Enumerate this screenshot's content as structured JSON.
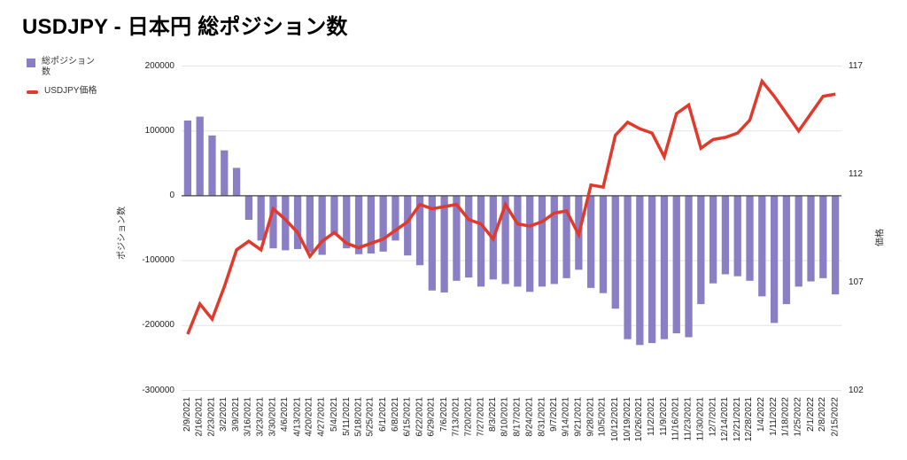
{
  "title": "USDJPY - 日本円 総ポジション数",
  "legend": {
    "items": [
      {
        "label": "総ポジション数",
        "type": "bar"
      },
      {
        "label": "USDJPY価格",
        "type": "line"
      }
    ]
  },
  "left_axis": {
    "title": "ポジション数",
    "ticks": [
      "200000",
      "100000",
      "0",
      "-100000",
      "-200000",
      "-300000"
    ]
  },
  "right_axis": {
    "title": "価格",
    "ticks": [
      "117",
      "112",
      "107",
      "102"
    ]
  },
  "colors": {
    "bar": "#8a7ec5",
    "line": "#e03a2c",
    "grid": "#e3e3e3",
    "zero_axis": "#424242"
  },
  "chart_data": {
    "type": "combo",
    "title": "USDJPY - 日本円 総ポジション数",
    "grid": true,
    "legend_position": "top-left",
    "left_axis_label": "ポジション数",
    "right_axis_label": "価格",
    "left_axis_range": [
      -300000,
      200000
    ],
    "right_axis_range": [
      102,
      117
    ],
    "categories": [
      "2/9/2021",
      "2/16/2021",
      "2/23/2021",
      "3/2/2021",
      "3/9/2021",
      "3/16/2021",
      "3/23/2021",
      "3/30/2021",
      "4/6/2021",
      "4/13/2021",
      "4/20/2021",
      "4/27/2021",
      "5/4/2021",
      "5/11/2021",
      "5/18/2021",
      "5/25/2021",
      "6/1/2021",
      "6/8/2021",
      "6/15/2021",
      "6/22/2021",
      "6/29/2021",
      "7/6/2021",
      "7/13/2021",
      "7/20/2021",
      "7/27/2021",
      "8/3/2021",
      "8/10/2021",
      "8/17/2021",
      "8/24/2021",
      "8/31/2021",
      "9/7/2021",
      "9/14/2021",
      "9/21/2021",
      "9/28/2021",
      "10/5/2021",
      "10/12/2021",
      "10/19/2021",
      "10/26/2021",
      "11/2/2021",
      "11/9/2021",
      "11/16/2021",
      "11/23/2021",
      "11/30/2021",
      "12/7/2021",
      "12/14/2021",
      "12/21/2021",
      "12/28/2021",
      "1/4/2022",
      "1/11/2022",
      "1/18/2022",
      "1/25/2022",
      "2/1/2022",
      "2/8/2022",
      "2/15/2022"
    ],
    "series": [
      {
        "name": "総ポジション数",
        "type": "bar",
        "axis": "left",
        "color": "#8a7ec5",
        "values": [
          116000,
          122000,
          93000,
          70000,
          43000,
          -37000,
          -69000,
          -81000,
          -84000,
          -82000,
          -87000,
          -91000,
          -60000,
          -81000,
          -90000,
          -89000,
          -86000,
          -69000,
          -92000,
          -107000,
          -146000,
          -149000,
          -131000,
          -126000,
          -140000,
          -129000,
          -136000,
          -140000,
          -148000,
          -140000,
          -136000,
          -127000,
          -114000,
          -142000,
          -150000,
          -174000,
          -221000,
          -230000,
          -227000,
          -221000,
          -212000,
          -218000,
          -167000,
          -135000,
          -121000,
          -124000,
          -131000,
          -155000,
          -196000,
          -167000,
          -140000,
          -132000,
          -127000,
          -152000
        ]
      },
      {
        "name": "USDJPY価格",
        "type": "line",
        "axis": "right",
        "color": "#e03a2c",
        "values": [
          104.6,
          106.0,
          105.3,
          106.8,
          108.5,
          108.9,
          108.5,
          110.4,
          109.9,
          109.3,
          108.2,
          108.9,
          109.3,
          108.8,
          108.6,
          108.8,
          109.0,
          109.4,
          109.8,
          110.6,
          110.4,
          110.5,
          110.6,
          109.9,
          109.7,
          109.0,
          110.6,
          109.7,
          109.6,
          109.8,
          110.2,
          110.3,
          109.2,
          111.5,
          111.4,
          113.8,
          114.4,
          114.1,
          113.9,
          112.8,
          114.8,
          115.2,
          113.2,
          113.6,
          113.7,
          113.9,
          114.5,
          116.3,
          115.6,
          114.8,
          114.0,
          114.8,
          115.6,
          115.7
        ]
      }
    ]
  }
}
